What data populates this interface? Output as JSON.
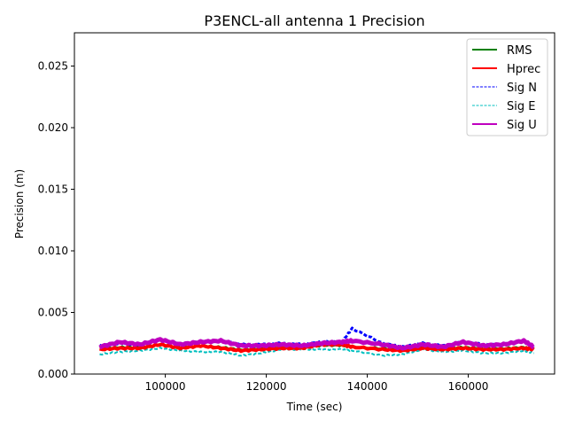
{
  "chart_data": {
    "type": "line",
    "title": "P3ENCL-all antenna 1 Precision",
    "xlabel": "Time (sec)",
    "ylabel": "Precision (m)",
    "xlim": [
      82000,
      177100
    ],
    "ylim": [
      0,
      0.0277
    ],
    "xticks": [
      100000,
      120000,
      140000,
      160000
    ],
    "xtick_labels": [
      "100000",
      "120000",
      "140000",
      "160000"
    ],
    "yticks": [
      0,
      0.005,
      0.01,
      0.015,
      0.02,
      0.025
    ],
    "ytick_labels": [
      "0.000",
      "0.005",
      "0.010",
      "0.015",
      "0.020",
      "0.025"
    ],
    "legend_position": "top-right",
    "grid": false,
    "x": [
      87000,
      91000,
      95000,
      99000,
      103000,
      107000,
      111000,
      115000,
      119000,
      123000,
      127000,
      131000,
      135000,
      137000,
      143000,
      147000,
      151000,
      155000,
      159000,
      163000,
      167000,
      171000,
      173000
    ],
    "series": [
      {
        "name": "RMS",
        "color": "#008000",
        "style": "solid",
        "values": [
          0.0021,
          0.0022,
          0.0022,
          0.0024,
          0.0022,
          0.0023,
          0.0022,
          0.002,
          0.0021,
          0.0022,
          0.0021,
          0.0023,
          0.0023,
          0.0022,
          0.0021,
          0.002,
          0.0022,
          0.0021,
          0.0022,
          0.0021,
          0.0021,
          0.0022,
          0.002
        ]
      },
      {
        "name": "Hprec",
        "color": "#ff0000",
        "style": "solid",
        "values": [
          0.002,
          0.0021,
          0.0021,
          0.0024,
          0.0021,
          0.0023,
          0.0021,
          0.0019,
          0.002,
          0.0021,
          0.0021,
          0.0024,
          0.0024,
          0.0022,
          0.002,
          0.0019,
          0.0021,
          0.002,
          0.0021,
          0.002,
          0.002,
          0.0021,
          0.002
        ]
      },
      {
        "name": "Sig N",
        "color": "#0000ff",
        "style": "dashed",
        "values": [
          0.0023,
          0.0025,
          0.0024,
          0.0028,
          0.0024,
          0.0026,
          0.0027,
          0.0024,
          0.0024,
          0.0025,
          0.0024,
          0.0026,
          0.0026,
          0.0037,
          0.0025,
          0.0022,
          0.0025,
          0.0023,
          0.0026,
          0.0024,
          0.0024,
          0.0027,
          0.0022
        ]
      },
      {
        "name": "Sig E",
        "color": "#00bfbf",
        "style": "dashed",
        "values": [
          0.0016,
          0.0018,
          0.0019,
          0.0021,
          0.0019,
          0.0018,
          0.0018,
          0.0015,
          0.0017,
          0.002,
          0.002,
          0.002,
          0.002,
          0.0019,
          0.0015,
          0.0016,
          0.002,
          0.0018,
          0.0019,
          0.0017,
          0.0017,
          0.0019,
          0.0017
        ]
      },
      {
        "name": "Sig U",
        "color": "#bf00bf",
        "style": "solid",
        "values": [
          0.0022,
          0.0026,
          0.0024,
          0.0028,
          0.0024,
          0.0026,
          0.0027,
          0.0023,
          0.0023,
          0.0024,
          0.0023,
          0.0025,
          0.0026,
          0.0027,
          0.0024,
          0.0021,
          0.0024,
          0.0022,
          0.0026,
          0.0023,
          0.0024,
          0.0027,
          0.0022
        ]
      }
    ]
  }
}
